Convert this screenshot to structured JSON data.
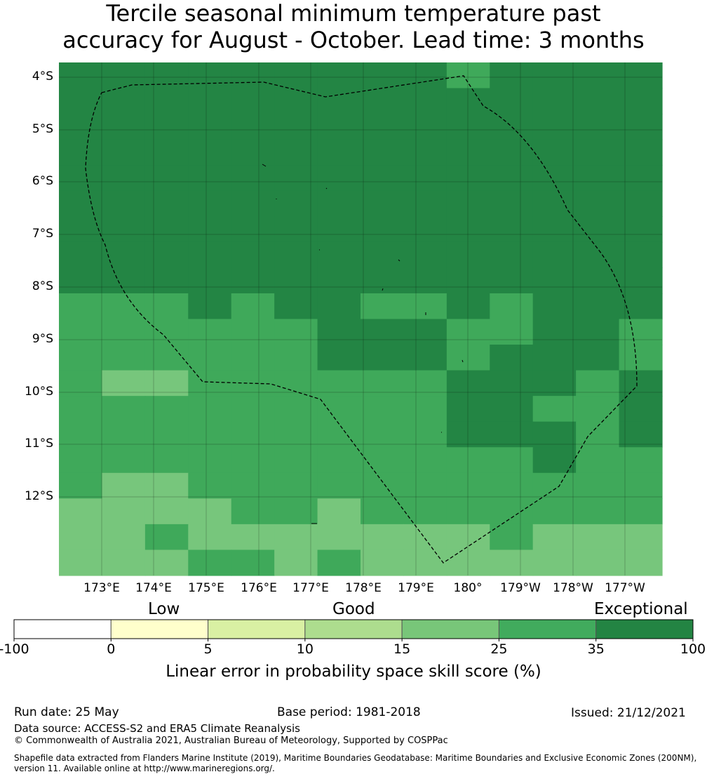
{
  "title": {
    "line1": "Tercile seasonal minimum temperature past",
    "line2": "accuracy for August - October. Lead time: 3 months"
  },
  "map": {
    "lat_labels": [
      "4°S",
      "5°S",
      "6°S",
      "7°S",
      "8°S",
      "9°S",
      "10°S",
      "11°S",
      "12°S"
    ],
    "lon_labels": [
      "173°E",
      "174°E",
      "175°E",
      "176°E",
      "177°E",
      "178°E",
      "179°E",
      "180°",
      "179°W",
      "178°W",
      "177°W"
    ],
    "gridlines": true,
    "boundary_line": "dashed",
    "category_colors": {
      "c1": "#77c67c",
      "c2": "#3fa95a",
      "c3": "#238544"
    },
    "cell_grid": [
      "33333333323333",
      "33333333333333",
      "33333333333333",
      "33333333333333",
      "33333333333333",
      "33333333333333",
      "33333333333333",
      "33333333333333",
      "33333333333333",
      "22232332232333",
      "22222233322332",
      "22222233323332",
      "21122222233323",
      "22222222233223",
      "22222222233323",
      "22222222222322",
      "21122222222222",
      "11112212222222",
      "11211111112111",
      "11122121111111"
    ]
  },
  "colorbar": {
    "category_labels": [
      "Low",
      "Good",
      "Exceptional"
    ],
    "ticks": [
      "-100",
      "0",
      "5",
      "10",
      "15",
      "25",
      "35",
      "100"
    ],
    "colors": [
      "#ffffff",
      "#ffffcc",
      "#d9f0a3",
      "#addd8e",
      "#78c679",
      "#41ab5d",
      "#238443"
    ],
    "caption": "Linear error in probability space skill score (%)"
  },
  "footer": {
    "run_date": "Run date: 25 May",
    "base_period": "Base period: 1981-2018",
    "issued": "Issued: 21/12/2021",
    "data_source": "Data source: ACCESS-S2 and ERA5 Climate Reanalysis",
    "copyright": "© Commonwealth of Australia 2021, Australian Bureau of Meteorology, Supported by COSPPac",
    "shapefile_note": "Shapefile data extracted from Flanders Marine Institute (2019), Maritime Boundaries Geodatabase: Maritime Boundaries and Exclusive Economic Zones (200NM), version 11. Available online at http://www.marineregions.org/."
  }
}
